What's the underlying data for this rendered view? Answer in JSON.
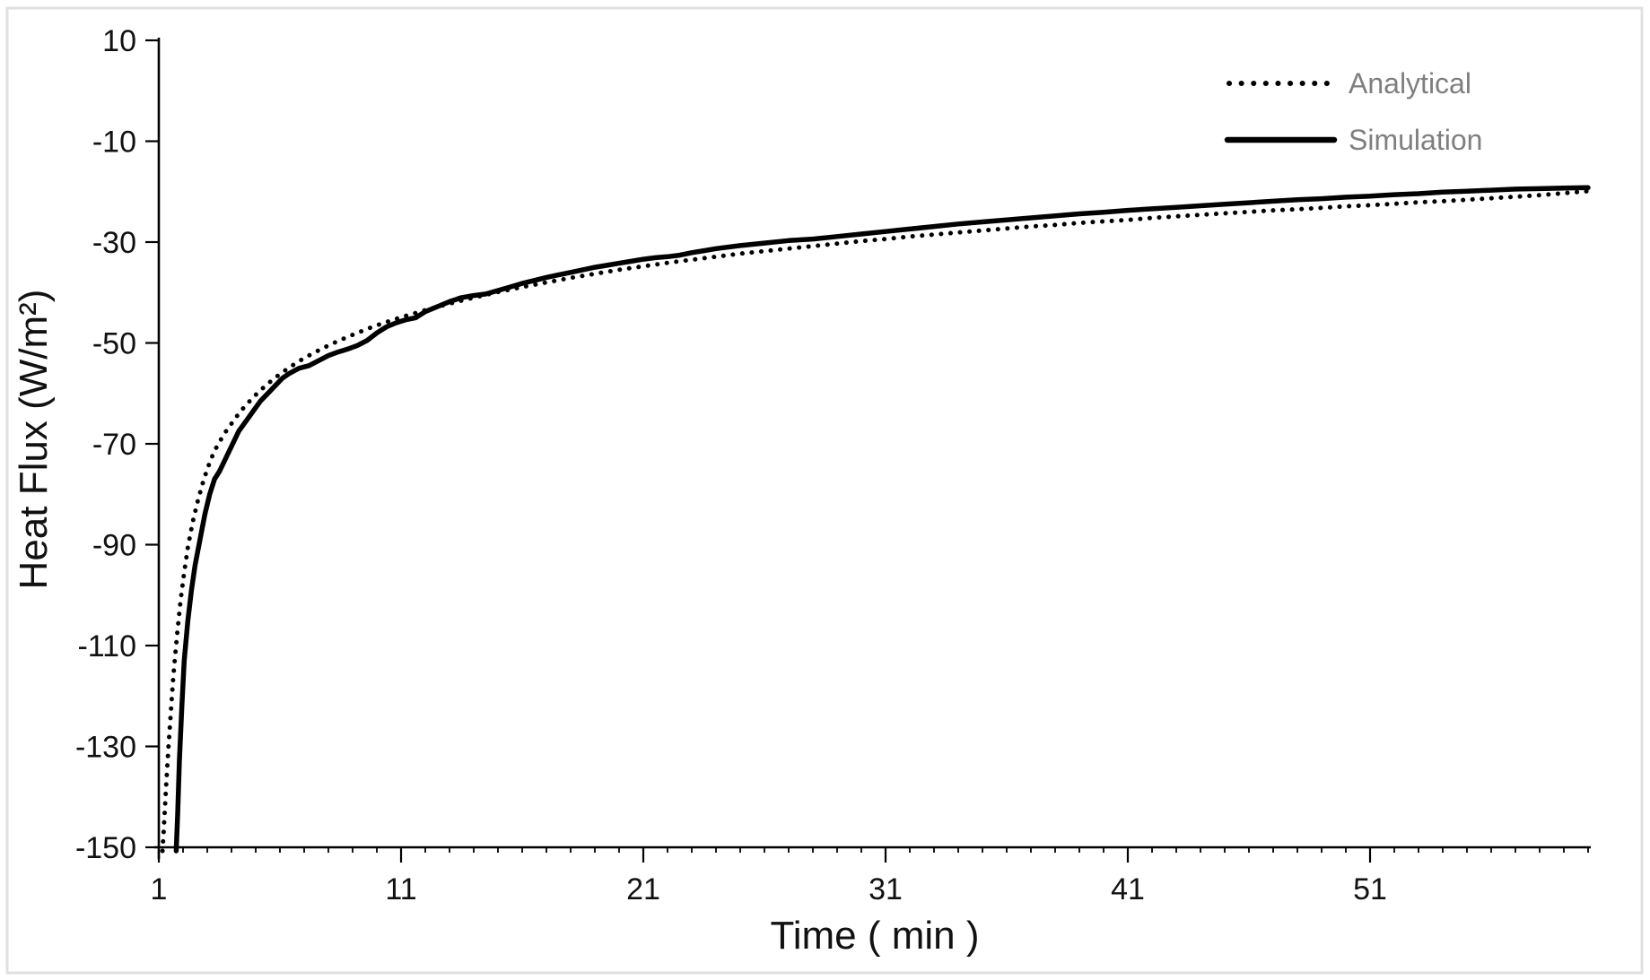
{
  "figure": {
    "background": "#ffffff",
    "border_color": "#e0e0e0",
    "series_color": "#000000",
    "legend_text_color": "#7f7f7f"
  },
  "chart_data": {
    "type": "line",
    "title": "",
    "xlabel": "Time ( min )",
    "ylabel": "Heat Flux  (W/m²)",
    "xlim": [
      1,
      60
    ],
    "ylim": [
      -150,
      10
    ],
    "x_ticks": [
      1,
      11,
      21,
      31,
      41,
      51
    ],
    "x_minor_tick_step": 1,
    "y_ticks": [
      10,
      -10,
      -30,
      -50,
      -70,
      -90,
      -110,
      -130,
      -150
    ],
    "grid": false,
    "legend_position": "top-right-inside",
    "legend": [
      "Analytical",
      "Simulation"
    ],
    "series": [
      {
        "name": "Analytical",
        "style": "dotted",
        "points": [
          [
            1.15,
            -152
          ],
          [
            1.2,
            -147
          ],
          [
            1.3,
            -138
          ],
          [
            1.4,
            -130
          ],
          [
            1.5,
            -123
          ],
          [
            1.6,
            -116
          ],
          [
            1.75,
            -108
          ],
          [
            1.9,
            -101
          ],
          [
            2.05,
            -95.5
          ],
          [
            2.2,
            -90.5
          ],
          [
            2.4,
            -85.5
          ],
          [
            2.6,
            -81.5
          ],
          [
            2.8,
            -78
          ],
          [
            3,
            -75
          ],
          [
            3.2,
            -72.5
          ],
          [
            3.4,
            -70.5
          ],
          [
            3.7,
            -68
          ],
          [
            4,
            -66
          ],
          [
            4.3,
            -64
          ],
          [
            4.6,
            -62.3
          ],
          [
            5,
            -60.3
          ],
          [
            5.4,
            -58.5
          ],
          [
            5.8,
            -56.9
          ],
          [
            6.2,
            -55.5
          ],
          [
            6.6,
            -54.2
          ],
          [
            7,
            -53
          ],
          [
            7.5,
            -51.7
          ],
          [
            8,
            -50.5
          ],
          [
            8.5,
            -49.4
          ],
          [
            9,
            -48.4
          ],
          [
            9.5,
            -47.4
          ],
          [
            10,
            -46.5
          ],
          [
            10.5,
            -45.7
          ],
          [
            11,
            -44.9
          ],
          [
            11.5,
            -44.2
          ],
          [
            12,
            -43.5
          ],
          [
            13,
            -42.2
          ],
          [
            14,
            -41
          ],
          [
            15,
            -39.9
          ],
          [
            16,
            -38.9
          ],
          [
            17,
            -38
          ],
          [
            18,
            -37.1
          ],
          [
            19,
            -36.3
          ],
          [
            20,
            -35.5
          ],
          [
            21,
            -34.8
          ],
          [
            22,
            -34.1
          ],
          [
            23,
            -33.5
          ],
          [
            24,
            -32.9
          ],
          [
            25,
            -32.3
          ],
          [
            26,
            -31.8
          ],
          [
            27,
            -31.3
          ],
          [
            28,
            -30.8
          ],
          [
            29,
            -30.3
          ],
          [
            30,
            -29.8
          ],
          [
            31,
            -29.4
          ],
          [
            32,
            -28.9
          ],
          [
            33,
            -28.5
          ],
          [
            34,
            -28.1
          ],
          [
            35,
            -27.7
          ],
          [
            36,
            -27.3
          ],
          [
            37,
            -26.9
          ],
          [
            38,
            -26.6
          ],
          [
            39,
            -26.2
          ],
          [
            40,
            -25.9
          ],
          [
            41,
            -25.6
          ],
          [
            42,
            -25.2
          ],
          [
            43,
            -24.9
          ],
          [
            44,
            -24.6
          ],
          [
            45,
            -24.3
          ],
          [
            46,
            -24
          ],
          [
            47,
            -23.7
          ],
          [
            48,
            -23.5
          ],
          [
            49,
            -23.2
          ],
          [
            50,
            -22.9
          ],
          [
            51,
            -22.7
          ],
          [
            52,
            -22.4
          ],
          [
            53,
            -22.1
          ],
          [
            54,
            -21.9
          ],
          [
            55,
            -21.6
          ],
          [
            56,
            -21.3
          ],
          [
            57,
            -21
          ],
          [
            58,
            -20.7
          ],
          [
            59,
            -20.3
          ],
          [
            60,
            -19.9
          ]
        ]
      },
      {
        "name": "Simulation",
        "style": "solid",
        "points": [
          [
            1.72,
            -152
          ],
          [
            1.78,
            -143
          ],
          [
            1.85,
            -133
          ],
          [
            1.95,
            -122
          ],
          [
            2.05,
            -113
          ],
          [
            2.2,
            -105
          ],
          [
            2.35,
            -99
          ],
          [
            2.5,
            -94
          ],
          [
            2.7,
            -89
          ],
          [
            2.9,
            -84
          ],
          [
            3.1,
            -80
          ],
          [
            3.3,
            -77
          ],
          [
            3.5,
            -75.5
          ],
          [
            3.7,
            -73.5
          ],
          [
            3.9,
            -71.5
          ],
          [
            4.1,
            -69.5
          ],
          [
            4.3,
            -67.5
          ],
          [
            4.6,
            -65.5
          ],
          [
            4.9,
            -63.5
          ],
          [
            5.2,
            -61.5
          ],
          [
            5.5,
            -60
          ],
          [
            5.8,
            -58.5
          ],
          [
            6.1,
            -57
          ],
          [
            6.4,
            -56
          ],
          [
            6.8,
            -55
          ],
          [
            7.2,
            -54.5
          ],
          [
            7.6,
            -53.5
          ],
          [
            8,
            -52.5
          ],
          [
            8.4,
            -51.8
          ],
          [
            8.8,
            -51.2
          ],
          [
            9.2,
            -50.5
          ],
          [
            9.6,
            -49.5
          ],
          [
            10,
            -48
          ],
          [
            10.4,
            -46.8
          ],
          [
            10.8,
            -46
          ],
          [
            11.2,
            -45.4
          ],
          [
            11.6,
            -45
          ],
          [
            12,
            -43.8
          ],
          [
            12.5,
            -42.8
          ],
          [
            13,
            -41.8
          ],
          [
            13.5,
            -41
          ],
          [
            14,
            -40.6
          ],
          [
            14.5,
            -40.3
          ],
          [
            15,
            -39.6
          ],
          [
            15.5,
            -38.9
          ],
          [
            16,
            -38.2
          ],
          [
            16.5,
            -37.6
          ],
          [
            17,
            -37
          ],
          [
            17.5,
            -36.5
          ],
          [
            18,
            -36
          ],
          [
            18.5,
            -35.5
          ],
          [
            19,
            -35
          ],
          [
            19.5,
            -34.6
          ],
          [
            20,
            -34.2
          ],
          [
            20.5,
            -33.8
          ],
          [
            21,
            -33.4
          ],
          [
            21.5,
            -33.1
          ],
          [
            22,
            -32.9
          ],
          [
            22.5,
            -32.6
          ],
          [
            23,
            -32.1
          ],
          [
            23.5,
            -31.7
          ],
          [
            24,
            -31.3
          ],
          [
            25,
            -30.7
          ],
          [
            26,
            -30.2
          ],
          [
            27,
            -29.7
          ],
          [
            28,
            -29.4
          ],
          [
            29,
            -28.9
          ],
          [
            30,
            -28.4
          ],
          [
            31,
            -27.9
          ],
          [
            32,
            -27.4
          ],
          [
            33,
            -26.9
          ],
          [
            34,
            -26.4
          ],
          [
            35,
            -26
          ],
          [
            36,
            -25.6
          ],
          [
            37,
            -25.2
          ],
          [
            38,
            -24.8
          ],
          [
            39,
            -24.4
          ],
          [
            40,
            -24.1
          ],
          [
            41,
            -23.7
          ],
          [
            42,
            -23.4
          ],
          [
            43,
            -23.1
          ],
          [
            44,
            -22.8
          ],
          [
            45,
            -22.5
          ],
          [
            46,
            -22.2
          ],
          [
            47,
            -21.9
          ],
          [
            48,
            -21.6
          ],
          [
            49,
            -21.4
          ],
          [
            50,
            -21.1
          ],
          [
            51,
            -20.9
          ],
          [
            52,
            -20.6
          ],
          [
            53,
            -20.4
          ],
          [
            54,
            -20.1
          ],
          [
            55,
            -19.9
          ],
          [
            56,
            -19.7
          ],
          [
            57,
            -19.5
          ],
          [
            58,
            -19.4
          ],
          [
            59,
            -19.3
          ],
          [
            60,
            -19.2
          ]
        ]
      }
    ]
  }
}
